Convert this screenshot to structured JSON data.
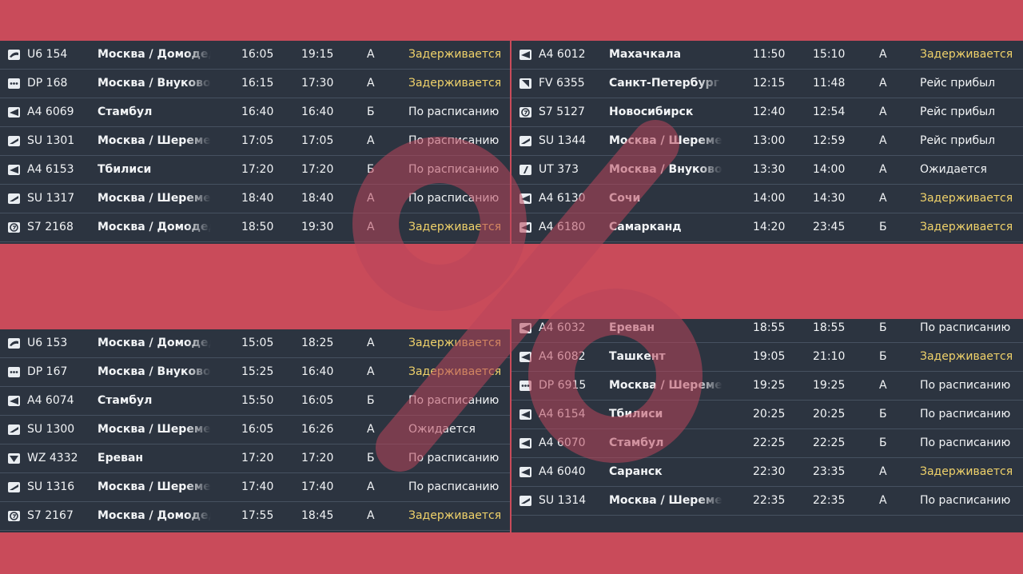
{
  "colors": {
    "background": "#c94b5a",
    "panel": "#2c3440",
    "row_divider": "#465160",
    "text": "#f2f4f6",
    "status_delayed": "#f0d26a"
  },
  "boards": [
    {
      "id": "top-left",
      "rows": [
        {
          "logo": "u6-logo-icon",
          "flight": "U6 154",
          "dest": "Москва / Домодедово",
          "sched": "16:05",
          "expected": "19:15",
          "terminal": "A",
          "status": "Задерживается",
          "delayed": true
        },
        {
          "logo": "dp-logo-icon",
          "flight": "DP 168",
          "dest": "Москва / Внуково",
          "sched": "16:15",
          "expected": "17:30",
          "terminal": "A",
          "status": "Задерживается",
          "delayed": true
        },
        {
          "logo": "a4-logo-icon",
          "flight": "A4 6069",
          "dest": "Стамбул",
          "sched": "16:40",
          "expected": "16:40",
          "terminal": "Б",
          "status": "По расписанию",
          "delayed": false
        },
        {
          "logo": "su-logo-icon",
          "flight": "SU 1301",
          "dest": "Москва / Шереметьево",
          "sched": "17:05",
          "expected": "17:05",
          "terminal": "A",
          "status": "По расписанию",
          "delayed": false
        },
        {
          "logo": "a4-logo-icon",
          "flight": "A4 6153",
          "dest": "Тбилиси",
          "sched": "17:20",
          "expected": "17:20",
          "terminal": "Б",
          "status": "По расписанию",
          "delayed": false
        },
        {
          "logo": "su-logo-icon",
          "flight": "SU 1317",
          "dest": "Москва / Шереметьево",
          "sched": "18:40",
          "expected": "18:40",
          "terminal": "A",
          "status": "По расписанию",
          "delayed": false
        },
        {
          "logo": "s7-logo-icon",
          "flight": "S7 2168",
          "dest": "Москва / Домодедово",
          "sched": "18:50",
          "expected": "19:30",
          "terminal": "A",
          "status": "Задерживается",
          "delayed": true
        }
      ]
    },
    {
      "id": "top-right",
      "rows": [
        {
          "logo": "a4-logo-icon",
          "flight": "A4 6012",
          "dest": "Махачкала",
          "sched": "11:50",
          "expected": "15:10",
          "terminal": "A",
          "status": "Задерживается",
          "delayed": true
        },
        {
          "logo": "fv-logo-icon",
          "flight": "FV 6355",
          "dest": "Санкт-Петербург",
          "sched": "12:15",
          "expected": "11:48",
          "terminal": "A",
          "status": "Рейс прибыл",
          "delayed": false
        },
        {
          "logo": "s7-logo-icon",
          "flight": "S7 5127",
          "dest": "Новосибирск",
          "sched": "12:40",
          "expected": "12:54",
          "terminal": "A",
          "status": "Рейс прибыл",
          "delayed": false
        },
        {
          "logo": "su-logo-icon",
          "flight": "SU 1344",
          "dest": "Москва / Шереметьево",
          "sched": "13:00",
          "expected": "12:59",
          "terminal": "A",
          "status": "Рейс прибыл",
          "delayed": false
        },
        {
          "logo": "ut-logo-icon",
          "flight": "UT 373",
          "dest": "Москва / Внуково",
          "sched": "13:30",
          "expected": "14:00",
          "terminal": "A",
          "status": "Ожидается",
          "delayed": false
        },
        {
          "logo": "a4-logo-icon",
          "flight": "A4 6130",
          "dest": "Сочи",
          "sched": "14:00",
          "expected": "14:30",
          "terminal": "A",
          "status": "Задерживается",
          "delayed": true
        },
        {
          "logo": "a4-logo-icon",
          "flight": "A4 6180",
          "dest": "Самарканд",
          "sched": "14:20",
          "expected": "23:45",
          "terminal": "Б",
          "status": "Задерживается",
          "delayed": true
        }
      ]
    },
    {
      "id": "bottom-left",
      "rows": [
        {
          "logo": "u6-logo-icon",
          "flight": "U6 153",
          "dest": "Москва / Домодедово",
          "sched": "15:05",
          "expected": "18:25",
          "terminal": "A",
          "status": "Задерживается",
          "delayed": true
        },
        {
          "logo": "dp-logo-icon",
          "flight": "DP 167",
          "dest": "Москва / Внуково",
          "sched": "15:25",
          "expected": "16:40",
          "terminal": "A",
          "status": "Задерживается",
          "delayed": true
        },
        {
          "logo": "a4-logo-icon",
          "flight": "A4 6074",
          "dest": "Стамбул",
          "sched": "15:50",
          "expected": "16:05",
          "terminal": "Б",
          "status": "По расписанию",
          "delayed": false
        },
        {
          "logo": "su-logo-icon",
          "flight": "SU 1300",
          "dest": "Москва / Шереметьево",
          "sched": "16:05",
          "expected": "16:26",
          "terminal": "A",
          "status": "Ожидается",
          "delayed": false
        },
        {
          "logo": "wz-logo-icon",
          "flight": "WZ 4332",
          "dest": "Ереван",
          "sched": "17:20",
          "expected": "17:20",
          "terminal": "Б",
          "status": "По расписанию",
          "delayed": false
        },
        {
          "logo": "su-logo-icon",
          "flight": "SU 1316",
          "dest": "Москва / Шереметьево",
          "sched": "17:40",
          "expected": "17:40",
          "terminal": "A",
          "status": "По расписанию",
          "delayed": false
        },
        {
          "logo": "s7-logo-icon",
          "flight": "S7 2167",
          "dest": "Москва / Домодедово",
          "sched": "17:55",
          "expected": "18:45",
          "terminal": "A",
          "status": "Задерживается",
          "delayed": true
        }
      ]
    },
    {
      "id": "bottom-right",
      "rows": [
        {
          "logo": "a4-logo-icon",
          "flight": "A4 6032",
          "dest": "Ереван",
          "sched": "18:55",
          "expected": "18:55",
          "terminal": "Б",
          "status": "По расписанию",
          "delayed": false
        },
        {
          "logo": "a4-logo-icon",
          "flight": "A4 6082",
          "dest": "Ташкент",
          "sched": "19:05",
          "expected": "21:10",
          "terminal": "Б",
          "status": "Задерживается",
          "delayed": true
        },
        {
          "logo": "dp-logo-icon",
          "flight": "DP 6915",
          "dest": "Москва / Шереметьево",
          "sched": "19:25",
          "expected": "19:25",
          "terminal": "A",
          "status": "По расписанию",
          "delayed": false
        },
        {
          "logo": "a4-logo-icon",
          "flight": "A4 6154",
          "dest": "Тбилиси",
          "sched": "20:25",
          "expected": "20:25",
          "terminal": "Б",
          "status": "По расписанию",
          "delayed": false
        },
        {
          "logo": "a4-logo-icon",
          "flight": "A4 6070",
          "dest": "Стамбул",
          "sched": "22:25",
          "expected": "22:25",
          "terminal": "Б",
          "status": "По расписанию",
          "delayed": false
        },
        {
          "logo": "a4-logo-icon",
          "flight": "A4 6040",
          "dest": "Саранск",
          "sched": "22:30",
          "expected": "23:35",
          "terminal": "A",
          "status": "Задерживается",
          "delayed": true
        },
        {
          "logo": "su-logo-icon",
          "flight": "SU 1314",
          "dest": "Москва / Шереметьево",
          "sched": "22:35",
          "expected": "22:35",
          "terminal": "A",
          "status": "По расписанию",
          "delayed": false
        }
      ]
    }
  ]
}
